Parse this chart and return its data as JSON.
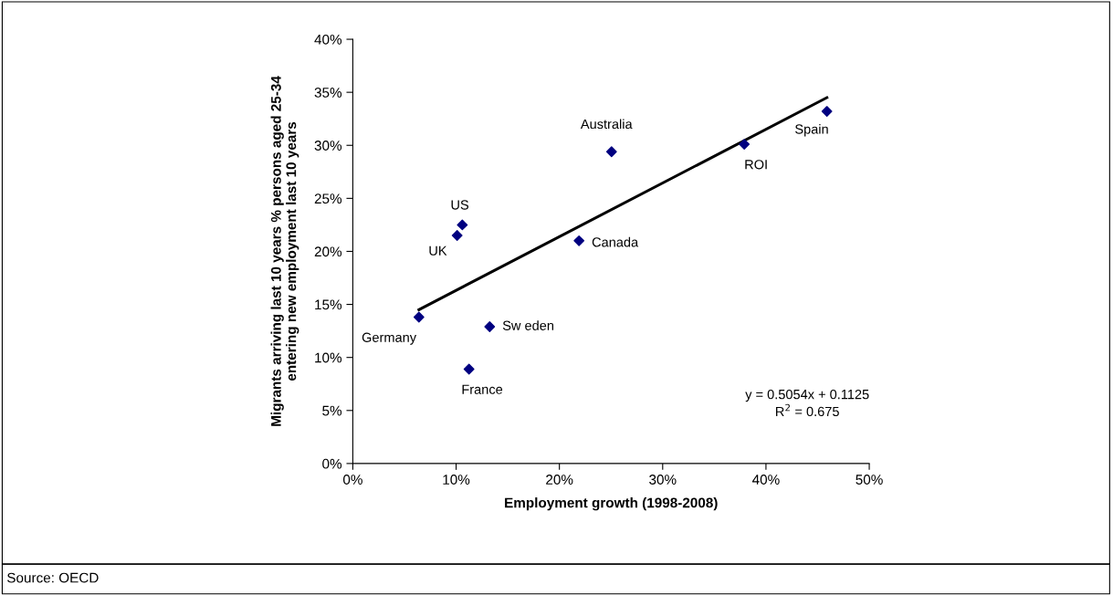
{
  "chart_data": {
    "type": "scatter",
    "xlabel": "Employment growth (1998-2008)",
    "ylabel": "Migrants arriving last 10 years % persons aged 25-34\nentering new employment last 10 years",
    "grid": false,
    "legend": false,
    "series": [
      {
        "marker": "diamond",
        "color": "#000080",
        "x": [
          6.4,
          10.1,
          10.6,
          11.25,
          13.25,
          21.9,
          25.05,
          37.9,
          45.9
        ],
        "values": [
          13.8,
          21.5,
          22.5,
          8.9,
          12.9,
          21.0,
          29.4,
          30.1,
          33.2
        ]
      },
      {
        "type": "line",
        "marker": "none",
        "color": "#000000",
        "x": [
          6.4,
          45.9
        ],
        "values": [
          14.5,
          34.5
        ]
      }
    ],
    "xlim": [
      0,
      50
    ],
    "ylim": [
      0,
      40
    ],
    "xticks": [
      {
        "value": 0,
        "label": "0%"
      },
      {
        "value": 10,
        "label": "10%"
      },
      {
        "value": 20,
        "label": "20%"
      },
      {
        "value": 30,
        "label": "30%"
      },
      {
        "value": 40,
        "label": "40%"
      },
      {
        "value": 50,
        "label": "50%"
      }
    ],
    "yticks": [
      {
        "value": 0,
        "label": "0%"
      },
      {
        "value": 5,
        "label": "5%"
      },
      {
        "value": 10,
        "label": "10%"
      },
      {
        "value": 15,
        "label": "15%"
      },
      {
        "value": 20,
        "label": "20%"
      },
      {
        "value": 25,
        "label": "25%"
      },
      {
        "value": 30,
        "label": "30%"
      },
      {
        "value": 35,
        "label": "35%"
      },
      {
        "value": 40,
        "label": "40%"
      }
    ],
    "annotations": [
      {
        "text": "Germany",
        "x": 6.4,
        "y": 13.8
      },
      {
        "text": "UK",
        "x": 10.1,
        "y": 21.5
      },
      {
        "text": "US",
        "x": 10.6,
        "y": 22.5
      },
      {
        "text": "France",
        "x": 11.25,
        "y": 8.9
      },
      {
        "text": "Sw eden",
        "x": 13.25,
        "y": 12.9
      },
      {
        "text": "Canada",
        "x": 21.9,
        "y": 21.0
      },
      {
        "text": "Australia",
        "x": 25.05,
        "y": 29.4
      },
      {
        "text": "ROI",
        "x": 37.9,
        "y": 30.1
      },
      {
        "text": "Spain",
        "x": 45.9,
        "y": 33.2
      },
      "y = 0.5054x + 0.1125\nR$^{2}$ = 0.675",
      "Source: OECD"
    ]
  }
}
